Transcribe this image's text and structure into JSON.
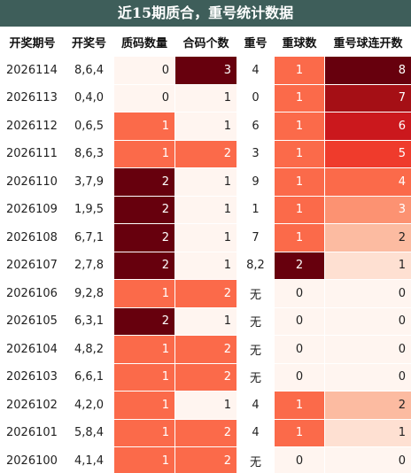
{
  "header": {
    "title": "近15期质合，重号统计数据"
  },
  "table": {
    "columns": [
      "开奖期号",
      "开奖号",
      "质码数量",
      "合码个数",
      "重号",
      "重球数",
      "重号球连开数"
    ],
    "rows": [
      [
        "2026114",
        "8,6,4",
        0,
        3,
        "4",
        1,
        8
      ],
      [
        "2026113",
        "0,4,0",
        0,
        1,
        "0",
        1,
        7
      ],
      [
        "2026112",
        "0,6,5",
        1,
        1,
        "6",
        1,
        6
      ],
      [
        "2026111",
        "8,6,3",
        1,
        2,
        "3",
        1,
        5
      ],
      [
        "2026110",
        "3,7,9",
        2,
        1,
        "9",
        1,
        4
      ],
      [
        "2026109",
        "1,9,5",
        2,
        1,
        "1",
        1,
        3
      ],
      [
        "2026108",
        "6,7,1",
        2,
        1,
        "7",
        1,
        2
      ],
      [
        "2026107",
        "2,7,8",
        2,
        1,
        "8,2",
        2,
        1
      ],
      [
        "2026106",
        "9,2,8",
        1,
        2,
        "无",
        0,
        0
      ],
      [
        "2026105",
        "6,3,1",
        2,
        1,
        "无",
        0,
        0
      ],
      [
        "2026104",
        "4,8,2",
        1,
        2,
        "无",
        0,
        0
      ],
      [
        "2026103",
        "6,6,1",
        1,
        2,
        "无",
        0,
        0
      ],
      [
        "2026102",
        "4,2,0",
        1,
        1,
        "4",
        1,
        2
      ],
      [
        "2026101",
        "5,8,4",
        1,
        2,
        "4",
        1,
        1
      ],
      [
        "2026100",
        "4,1,4",
        1,
        2,
        "无",
        0,
        0
      ]
    ]
  }
}
